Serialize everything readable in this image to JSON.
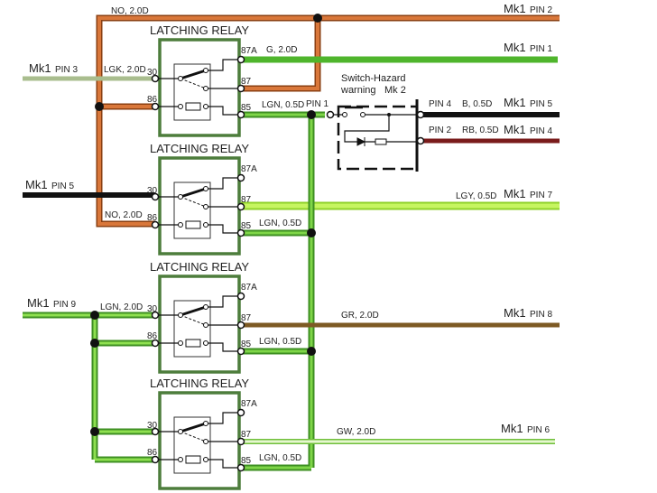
{
  "relays": [
    {
      "title": "LATCHING RELAY",
      "pins": {
        "a87": "87A",
        "p30": "30",
        "p87": "87",
        "p86": "86",
        "p85": "85"
      }
    },
    {
      "title": "LATCHING RELAY",
      "pins": {
        "a87": "87A",
        "p30": "30",
        "p87": "87",
        "p86": "86",
        "p85": "85"
      }
    },
    {
      "title": "LATCHING RELAY",
      "pins": {
        "a87": "87A",
        "p30": "30",
        "p87": "87",
        "p86": "86",
        "p85": "85"
      }
    },
    {
      "title": "LATCHING RELAY",
      "pins": {
        "a87": "87A",
        "p30": "30",
        "p87": "87",
        "p86": "86",
        "p85": "85"
      }
    }
  ],
  "wires": {
    "no_top": "NO, 2.0D",
    "no_mid": "NO, 2.0D",
    "g": "G, 2.0D",
    "lgk": "LGK, 2.0D",
    "lgn1": "LGN, 0.5D",
    "lgn2": "LGN, 0.5D",
    "lgn3": "LGN, 0.5D",
    "lgn4": "LGN, 0.5D",
    "lgn_in": "LGN, 2.0D",
    "lgy": "LGY, 0.5D",
    "gr": "GR, 2.0D",
    "gw": "GW, 2.0D",
    "b": "B, 0.5D",
    "rb": "RB, 0.5D"
  },
  "connectors": {
    "mk1": "Mk1",
    "pin2": "PIN 2",
    "pin1": "PIN 1",
    "pin3": "PIN 3",
    "pin5a": "PIN 5",
    "pin5b": "PIN 5",
    "pin4": "PIN 4",
    "pin7": "PIN 7",
    "pin9": "PIN 9",
    "pin8": "PIN 8",
    "pin6": "PIN 6"
  },
  "switch": {
    "title1": "Switch-Hazard",
    "title2": "warning",
    "mk2": "Mk 2",
    "pin1": "PIN 1",
    "pin4": "PIN 4",
    "pin2": "PIN 2"
  },
  "colors": {
    "orange": "#c8692e",
    "green": "#4fb52c",
    "light_green": "#b4ef3a",
    "grey_green": "#a9bd8e",
    "black": "#111111",
    "red_black": "#7a1c1c",
    "brown": "#7d5a24",
    "green_white": "#d8f2b4",
    "relay_box": "#4d7d3c"
  }
}
